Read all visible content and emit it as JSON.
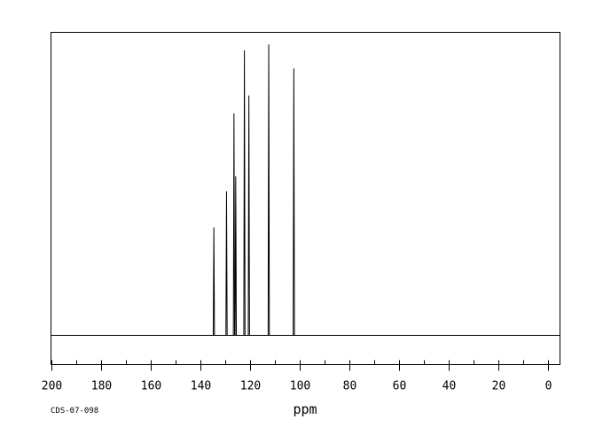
{
  "chart_data": {
    "type": "line",
    "title": "",
    "xlabel": "ppm",
    "ylabel": "",
    "xlim": [
      200,
      -5
    ],
    "x_reversed": true,
    "x_ticks": [
      200,
      180,
      160,
      140,
      120,
      100,
      80,
      60,
      40,
      20,
      0
    ],
    "minor_tick_step": 10,
    "grid": false,
    "legend": "none",
    "line_color": "#000000",
    "peaks": [
      {
        "x": 134.4,
        "y": 0.36
      },
      {
        "x": 129.3,
        "y": 0.48
      },
      {
        "x": 126.3,
        "y": 0.74
      },
      {
        "x": 125.6,
        "y": 0.53
      },
      {
        "x": 122.1,
        "y": 0.95
      },
      {
        "x": 120.3,
        "y": 0.8
      },
      {
        "x": 112.3,
        "y": 0.97
      },
      {
        "x": 102.2,
        "y": 0.89
      }
    ]
  },
  "footer": {
    "code": "CDS-07-098"
  }
}
